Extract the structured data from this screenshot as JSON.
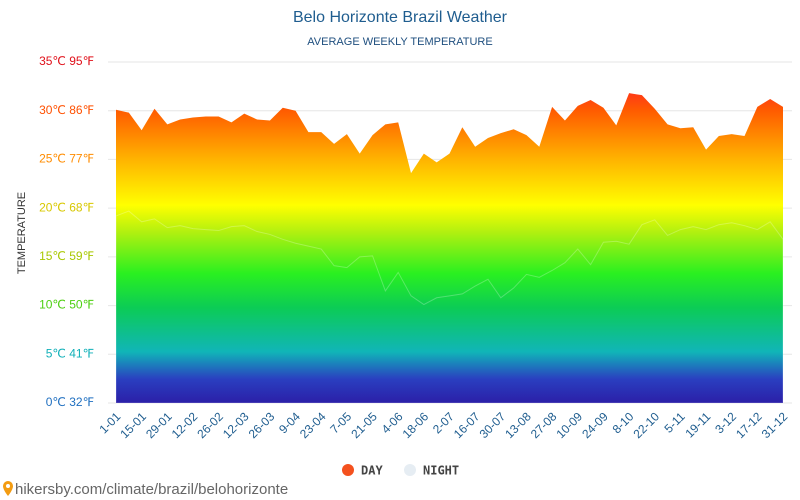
{
  "chart_data": {
    "type": "area",
    "title": "Belo Horizonte Brazil Weather",
    "subtitle": "AVERAGE WEEKLY TEMPERATURE",
    "y_label": "TEMPERATURE",
    "source": "hikersby.com/climate/brazil/belohorizonte",
    "categories": [
      "1-01",
      null,
      "15-01",
      null,
      "29-01",
      null,
      "12-02",
      null,
      "26-02",
      null,
      "12-03",
      null,
      "26-03",
      null,
      "9-04",
      null,
      "23-04",
      null,
      "7-05",
      null,
      "21-05",
      null,
      "4-06",
      null,
      "18-06",
      null,
      "2-07",
      null,
      "16-07",
      null,
      "30-07",
      null,
      "13-08",
      null,
      "27-08",
      null,
      "10-09",
      null,
      "24-09",
      null,
      "8-10",
      null,
      "22-10",
      null,
      "5-11",
      null,
      "19-11",
      null,
      "3-12",
      null,
      "17-12",
      null,
      "31-12"
    ],
    "series": [
      {
        "name": "DAY",
        "color": "#f4511e",
        "values": [
          30.1,
          29.8,
          28.0,
          30.2,
          28.6,
          29.1,
          29.3,
          29.4,
          29.4,
          28.8,
          29.7,
          29.1,
          29.0,
          30.3,
          30.0,
          27.8,
          27.8,
          26.6,
          27.6,
          25.6,
          27.5,
          28.6,
          28.8,
          23.6,
          25.6,
          24.7,
          25.6,
          28.3,
          26.3,
          27.2,
          27.7,
          28.1,
          27.5,
          26.3,
          30.4,
          29.0,
          30.5,
          31.1,
          30.3,
          28.5,
          31.8,
          31.6,
          30.2,
          28.6,
          28.2,
          28.3,
          26.0,
          27.4,
          27.6,
          27.4,
          30.4,
          31.2,
          30.4
        ]
      },
      {
        "name": "NIGHT",
        "color": "#e6edf3",
        "values": [
          19.2,
          19.7,
          18.6,
          18.9,
          18.0,
          18.2,
          17.9,
          17.8,
          17.7,
          18.1,
          18.2,
          17.6,
          17.3,
          16.8,
          16.4,
          16.1,
          15.8,
          14.1,
          13.9,
          15.0,
          15.1,
          11.5,
          13.4,
          11.0,
          10.1,
          10.8,
          11.0,
          11.2,
          12.0,
          12.7,
          10.8,
          11.8,
          13.2,
          12.9,
          13.6,
          14.4,
          15.8,
          14.2,
          16.5,
          16.6,
          16.3,
          18.3,
          18.8,
          17.2,
          17.8,
          18.1,
          17.8,
          18.3,
          18.5,
          18.2,
          17.8,
          18.6,
          16.8
        ]
      }
    ],
    "ylim": [
      0,
      35
    ],
    "yticks": [
      {
        "value": 0,
        "label": "0℃ 32℉"
      },
      {
        "value": 5,
        "label": "5℃ 41℉"
      },
      {
        "value": 10,
        "label": "10℃ 50℉"
      },
      {
        "value": 15,
        "label": "15℃ 59℉"
      },
      {
        "value": 20,
        "label": "20℃ 68℉"
      },
      {
        "value": 25,
        "label": "25℃ 77℉"
      },
      {
        "value": 30,
        "label": "30℃ 86℉"
      },
      {
        "value": 35,
        "label": "35℃ 95℉"
      }
    ],
    "grid": true
  }
}
